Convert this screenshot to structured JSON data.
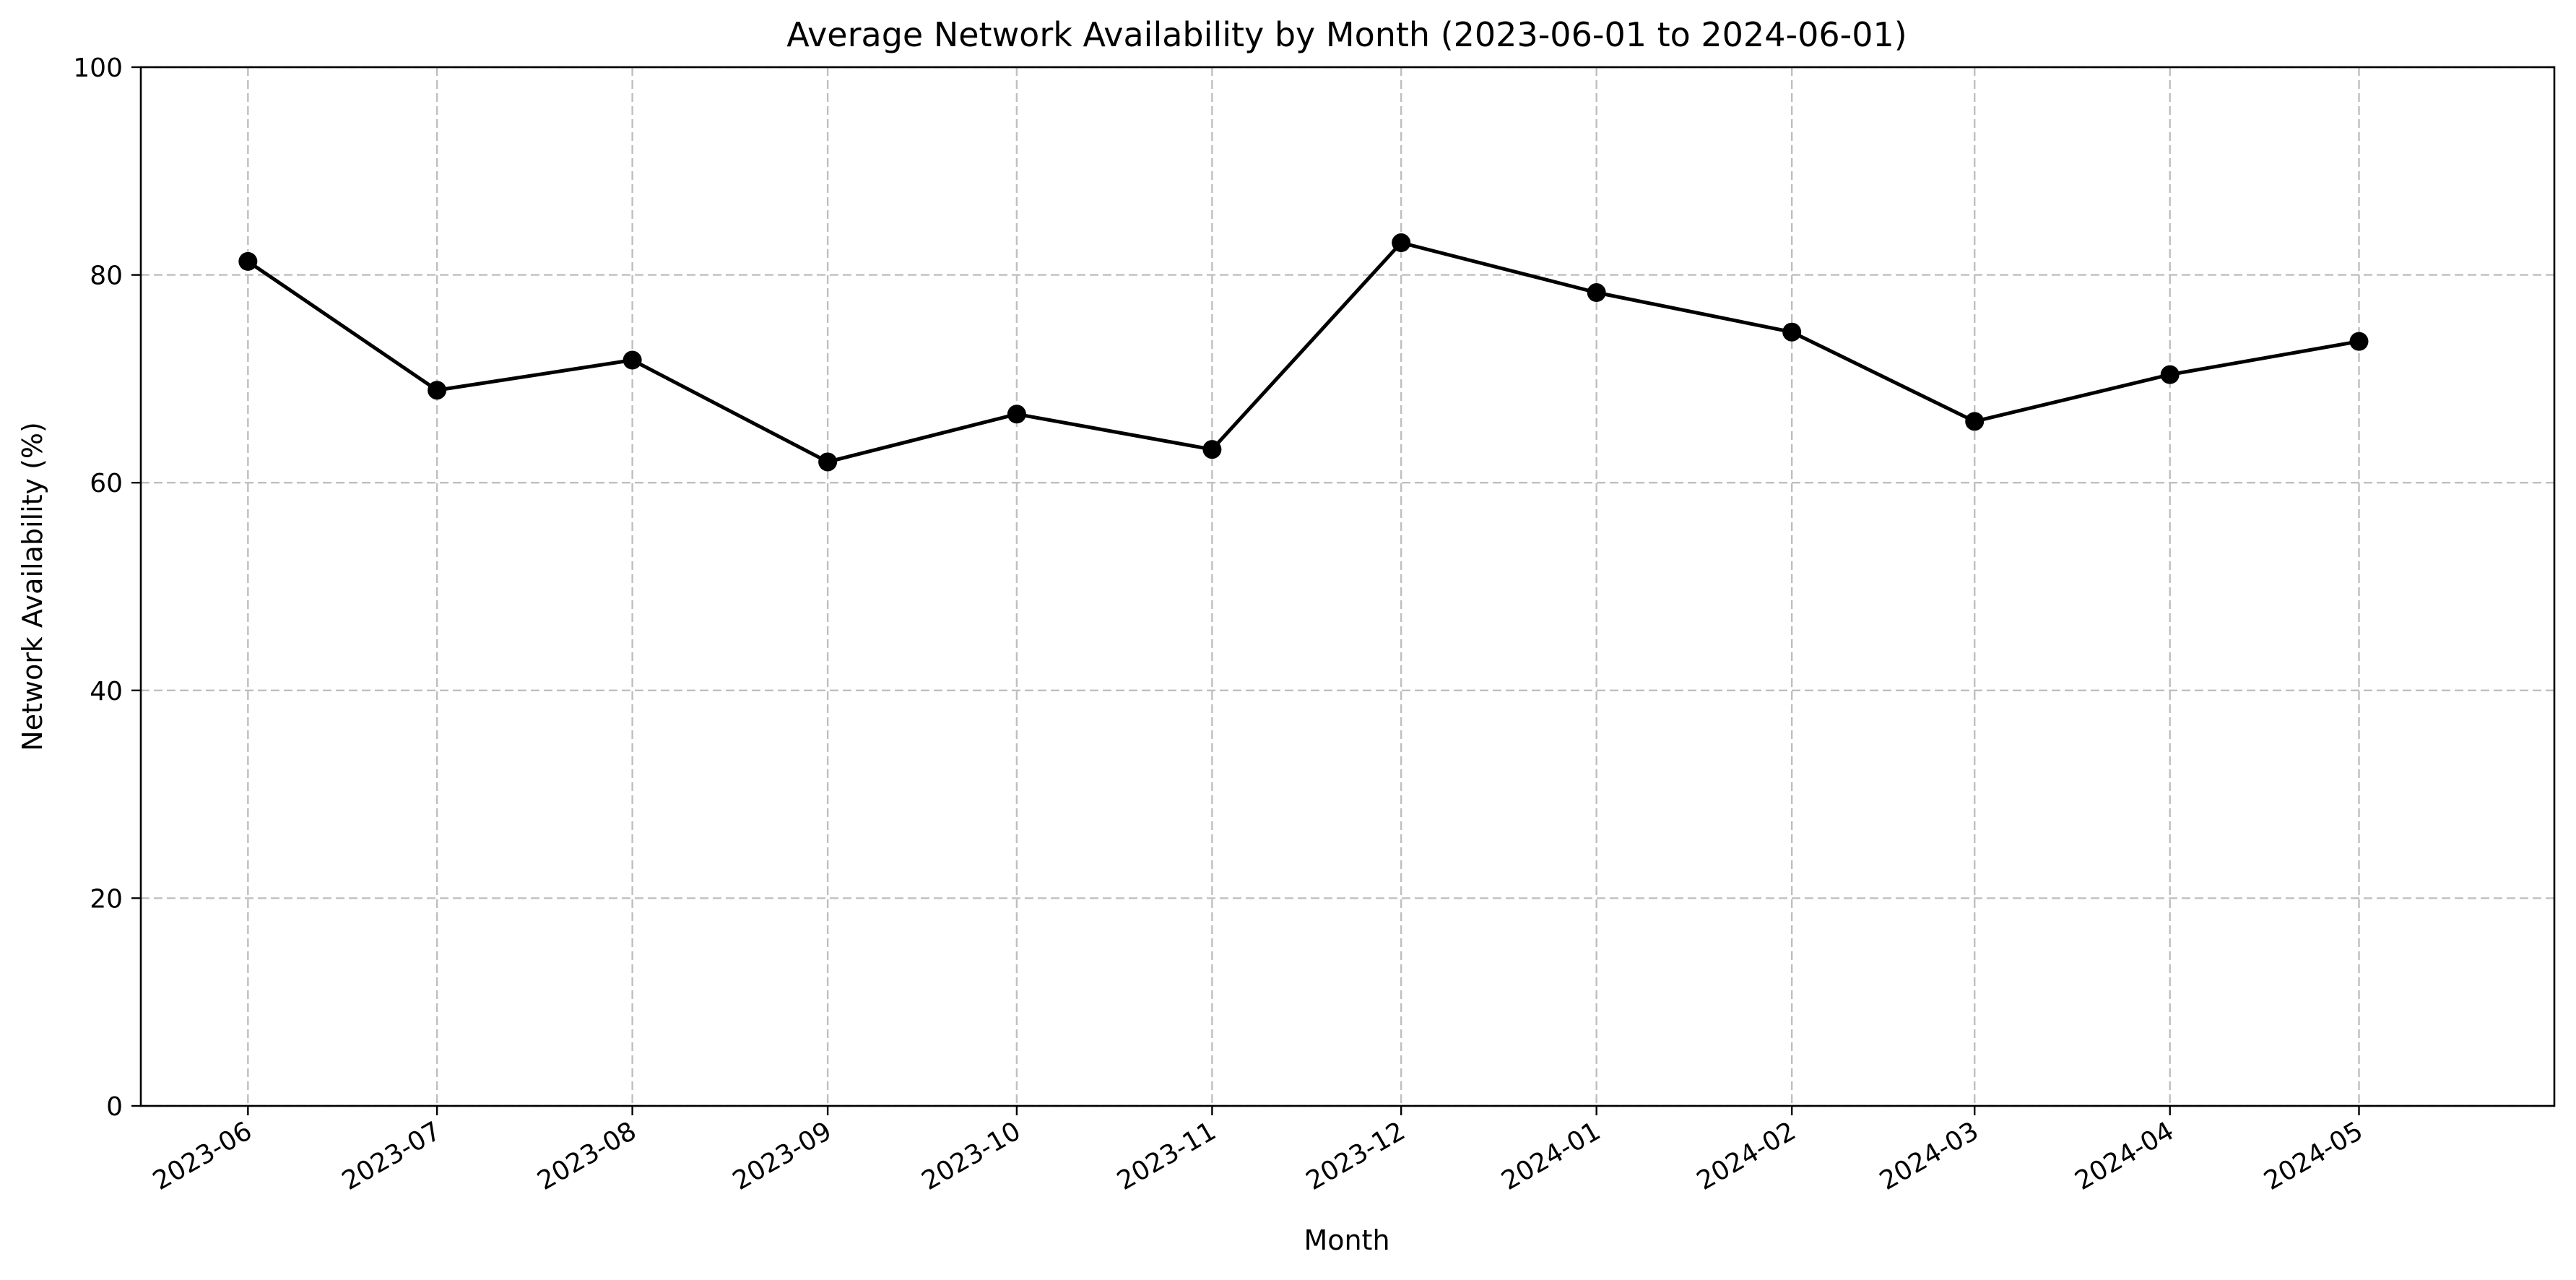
{
  "chart_data": {
    "type": "line",
    "title": "Average Network Availability by Month (2023-06-01 to 2024-06-01)",
    "xlabel": "Month",
    "ylabel": "Network Availability (%)",
    "categories": [
      "2023-06",
      "2023-07",
      "2023-08",
      "2023-09",
      "2023-10",
      "2023-11",
      "2023-12",
      "2024-01",
      "2024-02",
      "2024-03",
      "2024-04",
      "2024-05"
    ],
    "x": [
      "2023-06-01",
      "2023-07-01",
      "2023-08-01",
      "2023-09-01",
      "2023-10-01",
      "2023-11-01",
      "2023-12-01",
      "2024-01-01",
      "2024-02-01",
      "2024-03-01",
      "2024-04-01",
      "2024-05-01"
    ],
    "series": [
      {
        "values": [
          81.3,
          68.9,
          71.8,
          62.0,
          66.6,
          63.2,
          83.1,
          78.3,
          74.5,
          65.9,
          70.4,
          73.6
        ],
        "color": "#000000",
        "marker": "circle"
      }
    ],
    "ylim": [
      0,
      100
    ],
    "yticks": [
      0,
      20,
      40,
      60,
      80,
      100
    ],
    "xlim": [
      "2023-05-15",
      "2024-06-01"
    ],
    "grid": true,
    "grid_style": "dashed",
    "grid_color": "#bfbfbf",
    "legend": "none"
  }
}
